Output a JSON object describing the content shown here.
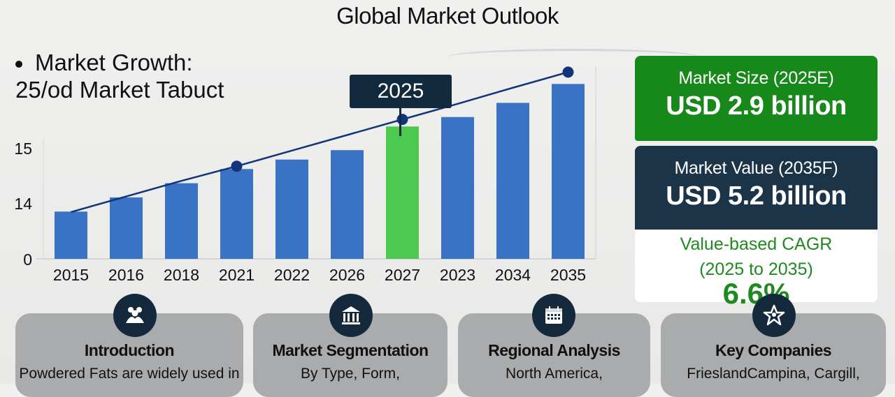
{
  "title": "Global Market Outlook",
  "heading": "Market Growth:",
  "subheading": "25/od Market Tabuct",
  "callout_label": "2025",
  "chart_data": {
    "type": "bar",
    "categories": [
      "2015",
      "2016",
      "2018",
      "2021",
      "2022",
      "2026",
      "2027",
      "2023",
      "2034",
      "2035"
    ],
    "values": [
      14.0,
      14.3,
      14.6,
      14.9,
      15.1,
      15.3,
      15.8,
      16.0,
      16.3,
      16.7
    ],
    "highlight_index": 6,
    "trend_line": [
      13.99,
      14.32,
      14.65,
      14.96,
      15.29,
      15.62,
      15.95,
      16.28,
      16.62,
      16.95
    ],
    "trend_markers": [
      3,
      6,
      9
    ],
    "yticks": [
      "0",
      "14",
      "15"
    ],
    "ylim": [
      13.0,
      17.0
    ],
    "grid": false,
    "colors": {
      "bar": "#3b73c4",
      "highlight": "#4cc94f",
      "trend": "#13337a"
    }
  },
  "stats": {
    "market_size_label": "Market Size (2025E)",
    "market_size_value": "USD 2.9 billion",
    "market_value_label": "Market Value (2035F)",
    "market_value_value": "USD 5.2 billion",
    "cagr_label_1": "Value-based CAGR",
    "cagr_label_2": "(2025 to 2035)",
    "cagr_value": "6.6%"
  },
  "panels": [
    {
      "title": "Introduction",
      "text": "Powdered Fats are widely used in",
      "icon": "people-icon"
    },
    {
      "title": "Market Segmentation",
      "text": "By Type, Form,",
      "icon": "building-icon"
    },
    {
      "title": "Regional Analysis",
      "text": "North America,",
      "icon": "calendar-icon"
    },
    {
      "title": "Key Companies",
      "text": "FrieslandCampina, Cargill,",
      "icon": "star-badge-icon"
    }
  ],
  "colors": {
    "green_card": "#17891b",
    "navy_card": "#1c3447",
    "cagr_text": "#1f8a1f",
    "panel_bg": "#a9abad",
    "icon_bg": "#15293c"
  }
}
